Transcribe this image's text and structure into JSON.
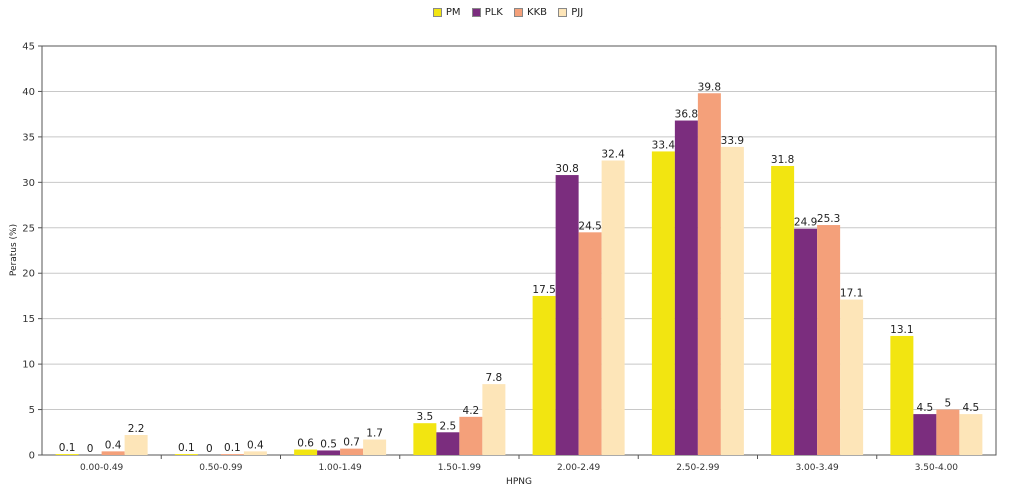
{
  "chart_data": {
    "type": "bar",
    "categories": [
      "0.00-0.49",
      "0.50-0.99",
      "1.00-1.49",
      "1.50-1.99",
      "2.00-2.49",
      "2.50-2.99",
      "3.00-3.49",
      "3.50-4.00"
    ],
    "series": [
      {
        "name": "PM",
        "color": "#f2e511",
        "values": [
          0.1,
          0.1,
          0.6,
          3.5,
          17.5,
          33.4,
          31.8,
          13.1
        ]
      },
      {
        "name": "PLK",
        "color": "#7b2d7e",
        "values": [
          0,
          0,
          0.5,
          2.5,
          30.8,
          36.8,
          24.9,
          4.5
        ]
      },
      {
        "name": "KKB",
        "color": "#f4a07a",
        "values": [
          0.4,
          0.1,
          0.7,
          4.2,
          24.5,
          39.8,
          25.3,
          5
        ]
      },
      {
        "name": "PJJ",
        "color": "#fde5b8",
        "values": [
          2.2,
          0.4,
          1.7,
          7.8,
          32.4,
          33.9,
          17.1,
          4.5
        ]
      }
    ],
    "title": "",
    "xlabel": "HPNG",
    "ylabel": "Peratus (%)",
    "ylim": [
      0,
      45
    ],
    "yticks": [
      0,
      5,
      10,
      15,
      20,
      25,
      30,
      35,
      40,
      45
    ],
    "grid": true,
    "legend": "top-center"
  }
}
